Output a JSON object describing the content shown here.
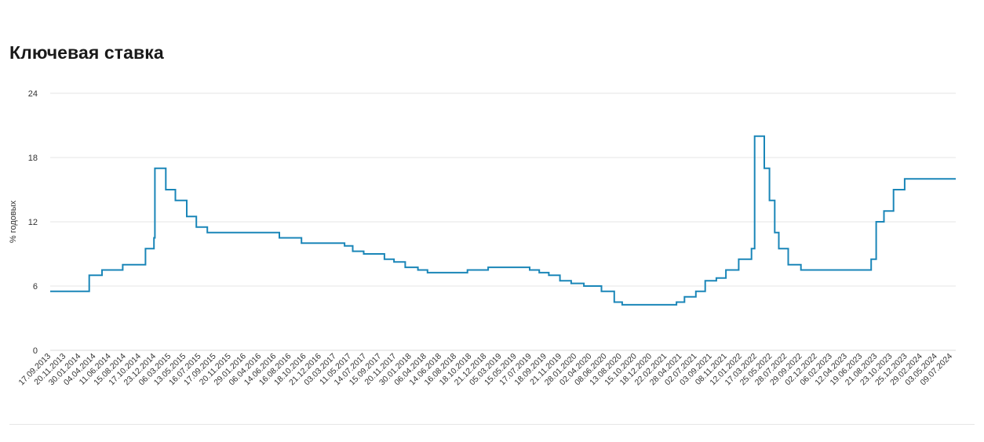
{
  "page": {
    "title": "Ключевая ставка"
  },
  "chart_data": {
    "type": "line",
    "title": "Ключевая ставка",
    "xlabel": "",
    "ylabel": "% годовых",
    "ylim": [
      0,
      24
    ],
    "yticks": [
      0,
      6,
      12,
      18,
      24
    ],
    "xlim": [
      "2013-09-13",
      "2024-07-29"
    ],
    "grid": true,
    "step": true,
    "line_color": "#1a86b8",
    "x_tick_labels": [
      "17.09.2013",
      "20.11.2013",
      "30.01.2014",
      "04.04.2014",
      "11.06.2014",
      "15.08.2014",
      "17.10.2014",
      "23.12.2014",
      "06.03.2015",
      "13.05.2015",
      "16.07.2015",
      "17.09.2015",
      "20.11.2015",
      "29.01.2016",
      "06.04.2016",
      "14.06.2016",
      "16.08.2016",
      "18.10.2016",
      "21.12.2016",
      "03.03.2017",
      "11.05.2017",
      "14.07.2017",
      "15.09.2017",
      "20.11.2017",
      "30.01.2018",
      "06.04.2018",
      "14.06.2018",
      "16.08.2018",
      "18.10.2018",
      "21.12.2018",
      "05.03.2019",
      "15.05.2019",
      "17.07.2019",
      "18.09.2019",
      "21.11.2019",
      "28.01.2020",
      "02.04.2020",
      "08.06.2020",
      "13.08.2020",
      "15.10.2020",
      "18.12.2020",
      "22.02.2021",
      "28.04.2021",
      "02.07.2021",
      "03.09.2021",
      "08.11.2021",
      "12.01.2022",
      "17.03.2022",
      "25.05.2022",
      "28.07.2022",
      "29.09.2022",
      "02.12.2022",
      "06.02.2023",
      "12.04.2023",
      "19.06.2023",
      "21.08.2023",
      "23.10.2023",
      "25.12.2023",
      "29.02.2024",
      "03.05.2024",
      "09.07.2024"
    ],
    "series": [
      {
        "points": [
          [
            "2013-09-13",
            5.5
          ],
          [
            "2014-03-03",
            7
          ],
          [
            "2014-04-28",
            7.5
          ],
          [
            "2014-07-28",
            8
          ],
          [
            "2014-11-05",
            9.5
          ],
          [
            "2014-12-12",
            10.5
          ],
          [
            "2014-12-16",
            17
          ],
          [
            "2015-02-02",
            15
          ],
          [
            "2015-03-16",
            14
          ],
          [
            "2015-05-05",
            12.5
          ],
          [
            "2015-06-16",
            11.5
          ],
          [
            "2015-08-03",
            11
          ],
          [
            "2016-06-14",
            10.5
          ],
          [
            "2016-09-19",
            10
          ],
          [
            "2017-03-27",
            9.75
          ],
          [
            "2017-05-02",
            9.25
          ],
          [
            "2017-06-19",
            9
          ],
          [
            "2017-09-18",
            8.5
          ],
          [
            "2017-10-30",
            8.25
          ],
          [
            "2017-12-18",
            7.75
          ],
          [
            "2018-02-12",
            7.5
          ],
          [
            "2018-03-26",
            7.25
          ],
          [
            "2018-09-17",
            7.5
          ],
          [
            "2018-12-17",
            7.75
          ],
          [
            "2019-06-17",
            7.5
          ],
          [
            "2019-07-29",
            7.25
          ],
          [
            "2019-09-09",
            7
          ],
          [
            "2019-10-28",
            6.5
          ],
          [
            "2019-12-16",
            6.25
          ],
          [
            "2020-02-10",
            6
          ],
          [
            "2020-04-27",
            5.5
          ],
          [
            "2020-06-22",
            4.5
          ],
          [
            "2020-07-27",
            4.25
          ],
          [
            "2021-03-22",
            4.5
          ],
          [
            "2021-04-26",
            5
          ],
          [
            "2021-06-15",
            5.5
          ],
          [
            "2021-07-26",
            6.5
          ],
          [
            "2021-09-13",
            6.75
          ],
          [
            "2021-10-25",
            7.5
          ],
          [
            "2021-12-20",
            8.5
          ],
          [
            "2022-02-14",
            9.5
          ],
          [
            "2022-02-28",
            20
          ],
          [
            "2022-04-11",
            17
          ],
          [
            "2022-05-04",
            14
          ],
          [
            "2022-05-27",
            11
          ],
          [
            "2022-06-14",
            9.5
          ],
          [
            "2022-07-25",
            8
          ],
          [
            "2022-09-19",
            7.5
          ],
          [
            "2023-07-24",
            8.5
          ],
          [
            "2023-08-15",
            12
          ],
          [
            "2023-09-18",
            13
          ],
          [
            "2023-10-30",
            15
          ],
          [
            "2023-12-18",
            16
          ],
          [
            "2024-07-29",
            16
          ]
        ]
      }
    ]
  }
}
